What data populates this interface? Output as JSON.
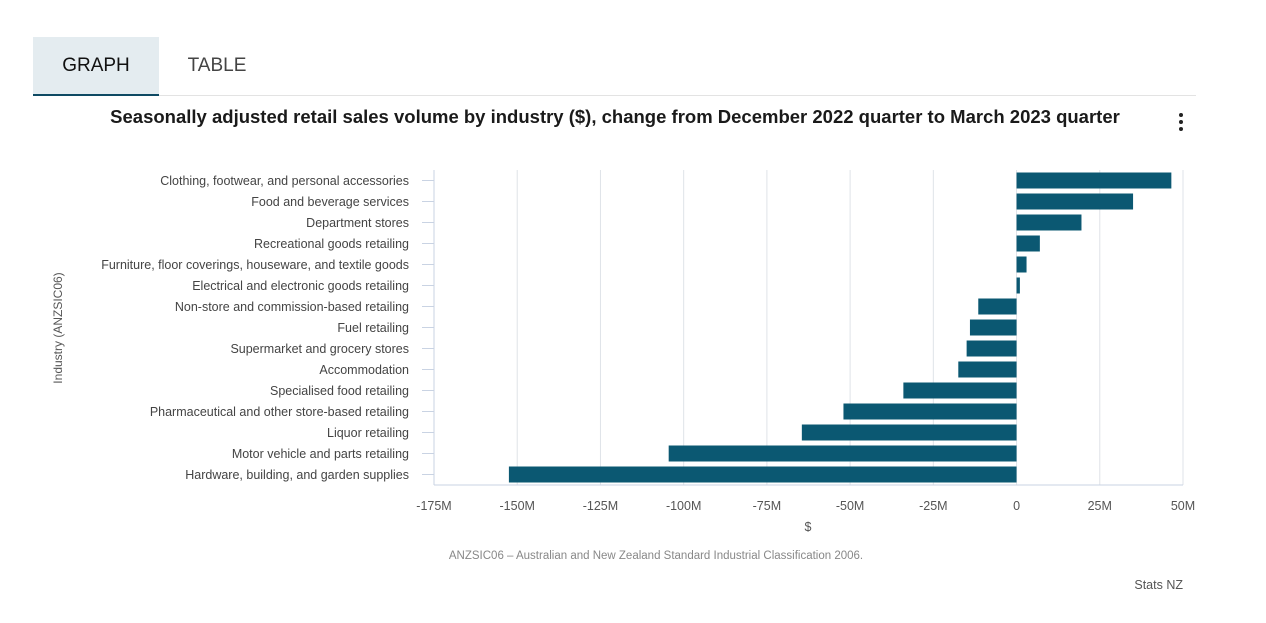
{
  "tabs": [
    {
      "label": "GRAPH",
      "active": true
    },
    {
      "label": "TABLE",
      "active": false
    }
  ],
  "menu_icon": "more-vertical-icon",
  "colors": {
    "bar": "#0b5872",
    "grid": "#dfe3e8",
    "axis": "#c9d3e3",
    "tab_active_bg": "#e4ecf0"
  },
  "chart_data": {
    "type": "bar",
    "orientation": "horizontal",
    "title": "Seasonally adjusted retail sales volume by industry ($), change from December 2022 quarter to March 2023 quarter",
    "xlabel": "$",
    "ylabel": "Industry (ANZSIC06)",
    "xlim": [
      -175000000,
      50000000
    ],
    "xticks": [
      {
        "value": -175000000,
        "label": "-175M"
      },
      {
        "value": -150000000,
        "label": "-150M"
      },
      {
        "value": -125000000,
        "label": "-125M"
      },
      {
        "value": -100000000,
        "label": "-100M"
      },
      {
        "value": -75000000,
        "label": "-75M"
      },
      {
        "value": -50000000,
        "label": "-50M"
      },
      {
        "value": -25000000,
        "label": "-25M"
      },
      {
        "value": 0,
        "label": "0"
      },
      {
        "value": 25000000,
        "label": "25M"
      },
      {
        "value": 50000000,
        "label": "50M"
      }
    ],
    "grid": true,
    "legend": false,
    "categories": [
      "Clothing, footwear, and personal accessories",
      "Food and beverage services",
      "Department stores",
      "Recreational goods retailing",
      "Furniture, floor coverings, houseware, and textile goods",
      "Electrical and electronic goods retailing",
      "Non-store and commission-based retailing",
      "Fuel retailing",
      "Supermarket and grocery stores",
      "Accommodation",
      "Specialised food retailing",
      "Pharmaceutical and other store-based retailing",
      "Liquor retailing",
      "Motor vehicle and parts retailing",
      "Hardware, building, and garden supplies"
    ],
    "values": [
      46500000,
      35000000,
      19500000,
      7000000,
      3000000,
      1000000,
      -11500000,
      -14000000,
      -15000000,
      -17500000,
      -34000000,
      -52000000,
      -64500000,
      -104500000,
      -152500000
    ]
  },
  "footnote": "ANZSIC06 – Australian and New Zealand Standard Industrial Classification 2006.",
  "credit": "Stats NZ"
}
